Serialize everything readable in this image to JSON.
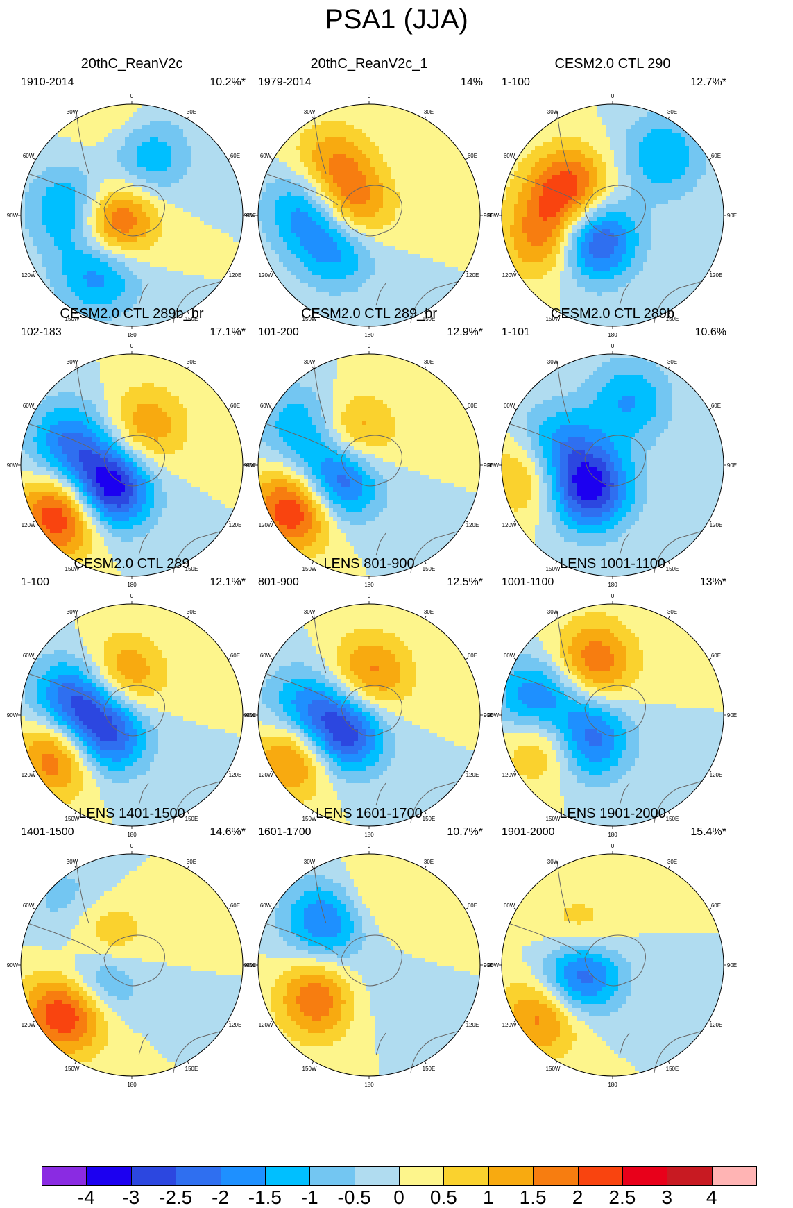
{
  "title": "PSA1 (JJA)",
  "lon_labels": [
    "0",
    "30E",
    "60E",
    "90E",
    "120E",
    "150E",
    "180",
    "150W",
    "120W",
    "90W",
    "60W",
    "30W"
  ],
  "colorbar": {
    "colors": [
      "#8a2be2",
      "#1c00f0",
      "#2c47e0",
      "#2f6ff0",
      "#1e90ff",
      "#00bfff",
      "#73c6f2",
      "#b0dcf0",
      "#fdf58c",
      "#fad22e",
      "#f8aa10",
      "#f77d10",
      "#f9440f",
      "#e8001a",
      "#c81a22",
      "#ffb4b4"
    ],
    "labels": [
      "-4",
      "-3",
      "-2.5",
      "-2",
      "-1.5",
      "-1",
      "-0.5",
      "0",
      "0.5",
      "1",
      "1.5",
      "2",
      "2.5",
      "3",
      "4"
    ]
  },
  "panels": [
    {
      "title": "20thC_ReanV2c",
      "period": "1910-2014",
      "pct": "10.2%*"
    },
    {
      "title": "20thC_ReanV2c_1",
      "period": "1979-2014",
      "pct": "14%"
    },
    {
      "title": "CESM2.0 CTL 290",
      "period": "1-100",
      "pct": "12.7%*"
    },
    {
      "title": "CESM2.0 CTL 289b_br",
      "period": "102-183",
      "pct": "17.1%*"
    },
    {
      "title": "CESM2.0 CTL 289_br",
      "period": "101-200",
      "pct": "12.9%*"
    },
    {
      "title": "CESM2.0 CTL 289b",
      "period": "1-101",
      "pct": "10.6%"
    },
    {
      "title": "CESM2.0 CTL 289",
      "period": "1-100",
      "pct": "12.1%*"
    },
    {
      "title": "LENS 801-900",
      "period": "801-900",
      "pct": "12.5%*"
    },
    {
      "title": "LENS 1001-1100",
      "period": "1001-1100",
      "pct": "13%*"
    },
    {
      "title": "LENS 1401-1500",
      "period": "1401-1500",
      "pct": "14.6%*"
    },
    {
      "title": "LENS 1601-1700",
      "period": "1601-1700",
      "pct": "10.7%*"
    },
    {
      "title": "LENS 1901-2000",
      "period": "1901-2000",
      "pct": "15.4%*"
    }
  ],
  "patterns": [
    [
      {
        "a": 15,
        "r": 0.55,
        "v": -1.5
      },
      {
        "a": -85,
        "r": 0.52,
        "v": -2.2
      },
      {
        "a": -150,
        "r": 0.58,
        "v": -2.0
      },
      {
        "a": -110,
        "r": 0.2,
        "v": 3.0
      },
      {
        "a": -10,
        "r": 0.85,
        "v": 0.6
      }
    ],
    [
      {
        "a": -130,
        "r": 0.35,
        "v": -3.0
      },
      {
        "a": -95,
        "r": 0.2,
        "v": 3.2
      },
      {
        "a": -80,
        "r": 0.55,
        "v": -2.2
      },
      {
        "a": -40,
        "r": 0.55,
        "v": 1.8
      }
    ],
    [
      {
        "a": -140,
        "r": 0.28,
        "v": -3.2
      },
      {
        "a": -110,
        "r": 0.62,
        "v": 2.0
      },
      {
        "a": -60,
        "r": 0.45,
        "v": 2.5
      },
      {
        "a": 40,
        "r": 0.7,
        "v": -1.5
      }
    ],
    [
      {
        "a": -135,
        "r": 0.3,
        "v": -3.8
      },
      {
        "a": -125,
        "r": 0.75,
        "v": 3.0
      },
      {
        "a": -70,
        "r": 0.6,
        "v": -2.0
      },
      {
        "a": 20,
        "r": 0.35,
        "v": 1.5
      }
    ],
    [
      {
        "a": -115,
        "r": 0.32,
        "v": -3.2
      },
      {
        "a": -120,
        "r": 0.75,
        "v": 3.0
      },
      {
        "a": -60,
        "r": 0.7,
        "v": -1.5
      },
      {
        "a": -30,
        "r": 0.3,
        "v": 1.8
      }
    ],
    [
      {
        "a": -135,
        "r": 0.3,
        "v": -3.2
      },
      {
        "a": -95,
        "r": 0.72,
        "v": 2.0
      },
      {
        "a": -75,
        "r": 0.55,
        "v": -2.2
      },
      {
        "a": 15,
        "r": 0.6,
        "v": -1.5
      }
    ],
    [
      {
        "a": -125,
        "r": 0.3,
        "v": -3.0
      },
      {
        "a": -118,
        "r": 0.72,
        "v": 2.5
      },
      {
        "a": -75,
        "r": 0.55,
        "v": -2.5
      },
      {
        "a": -15,
        "r": 0.35,
        "v": 1.8
      }
    ],
    [
      {
        "a": -125,
        "r": 0.3,
        "v": -3.2
      },
      {
        "a": -118,
        "r": 0.72,
        "v": 2.5
      },
      {
        "a": -85,
        "r": 0.6,
        "v": -1.8
      },
      {
        "a": 0,
        "r": 0.35,
        "v": 1.8
      }
    ],
    [
      {
        "a": -130,
        "r": 0.32,
        "v": -2.8
      },
      {
        "a": -110,
        "r": 0.62,
        "v": 2.3
      },
      {
        "a": -80,
        "r": 0.68,
        "v": -2.5
      },
      {
        "a": -20,
        "r": 0.5,
        "v": 2.0
      }
    ],
    [
      {
        "a": -100,
        "r": 0.3,
        "v": -3.0
      },
      {
        "a": -125,
        "r": 0.72,
        "v": 2.8
      },
      {
        "a": -60,
        "r": 0.3,
        "v": 2.5
      },
      {
        "a": -45,
        "r": 0.8,
        "v": -0.8
      }
    ],
    [
      {
        "a": -125,
        "r": 0.5,
        "v": 2.8
      },
      {
        "a": -45,
        "r": 0.55,
        "v": -2.2
      },
      {
        "a": -140,
        "r": 0.35,
        "v": -1.2
      },
      {
        "a": 0,
        "r": 0.6,
        "v": 0.8
      }
    ],
    [
      {
        "a": -95,
        "r": 0.3,
        "v": -3.8
      },
      {
        "a": -125,
        "r": 0.72,
        "v": 3.0
      },
      {
        "a": -60,
        "r": 0.35,
        "v": 2.3
      },
      {
        "a": -125,
        "r": 0.62,
        "v": -1.3
      }
    ]
  ]
}
